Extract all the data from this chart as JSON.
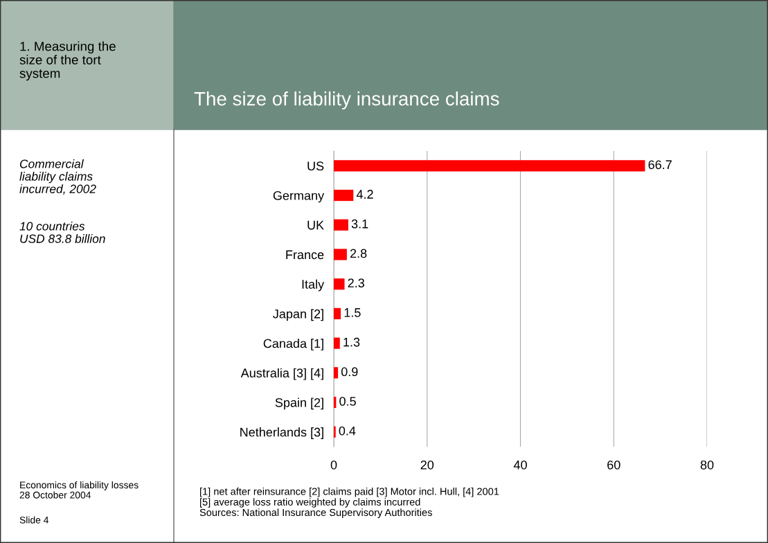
{
  "chart_data": {
    "type": "bar",
    "orientation": "horizontal",
    "title": "The size of liability insurance claims",
    "categories": [
      "US",
      "Germany",
      "UK",
      "France",
      "Italy",
      "Japan [2]",
      "Canada [1]",
      "Australia [3] [4]",
      "Spain [2]",
      "Netherlands [3]"
    ],
    "values": [
      66.7,
      4.2,
      3.1,
      2.8,
      2.3,
      1.5,
      1.3,
      0.9,
      0.5,
      0.4
    ],
    "color": "#ff0000",
    "xlim": [
      0,
      80
    ],
    "xticks": [
      0,
      20,
      40,
      60,
      80
    ],
    "grid": "x",
    "data_labels": true,
    "annotations": [
      "1. Measuring the\nsize of the tort\nsystem",
      "Commercial\nliability claims\nincurred, 2002",
      "10 countries\nUSD 83.8 billion",
      "Economics of liability losses\n28 October 2004",
      "Slide 4",
      "[1] net after reinsurance [2] claims paid [3] Motor incl. Hull, [4] 2001\n[5] average loss ratio weighted by claims incurred\nSources: National Insurance Supervisory Authorities"
    ]
  }
}
